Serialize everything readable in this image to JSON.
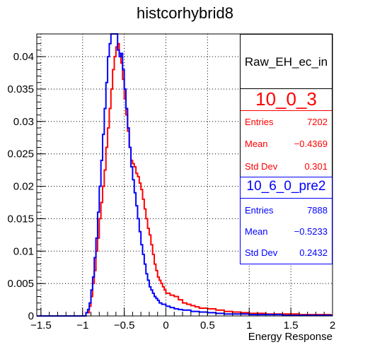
{
  "chart_data": {
    "type": "histogram",
    "title": "histcorhybrid8",
    "xlabel": "Energy Response",
    "ylabel": "",
    "xlim": [
      -1.55,
      2.0
    ],
    "ylim": [
      0,
      0.0435
    ],
    "grid": true,
    "x_ticks": [
      "-1.5",
      "-1",
      "-0.5",
      "0",
      "0.5",
      "1",
      "1.5",
      "2"
    ],
    "y_ticks": [
      "0",
      "0.005",
      "0.01",
      "0.015",
      "0.02",
      "0.025",
      "0.03",
      "0.035",
      "0.04"
    ],
    "stats_title": "Raw_EH_ec_in",
    "series": [
      {
        "name": "10_0_3",
        "color": "#ff0000",
        "entries": "7202",
        "mean": "−0.4369",
        "std_dev": "0.301",
        "points": [
          [
            -1.0,
            0
          ],
          [
            -0.96,
            0.0005
          ],
          [
            -0.92,
            0.0015
          ],
          [
            -0.9,
            0.003
          ],
          [
            -0.88,
            0.005
          ],
          [
            -0.86,
            0.007
          ],
          [
            -0.84,
            0.01
          ],
          [
            -0.82,
            0.012
          ],
          [
            -0.8,
            0.015
          ],
          [
            -0.78,
            0.0175
          ],
          [
            -0.76,
            0.02
          ],
          [
            -0.74,
            0.0225
          ],
          [
            -0.72,
            0.026
          ],
          [
            -0.7,
            0.029
          ],
          [
            -0.68,
            0.032
          ],
          [
            -0.66,
            0.035
          ],
          [
            -0.64,
            0.038
          ],
          [
            -0.62,
            0.04
          ],
          [
            -0.6,
            0.0415
          ],
          [
            -0.58,
            0.042
          ],
          [
            -0.56,
            0.0405
          ],
          [
            -0.54,
            0.039
          ],
          [
            -0.52,
            0.0365
          ],
          [
            -0.5,
            0.0335
          ],
          [
            -0.48,
            0.031
          ],
          [
            -0.46,
            0.0285
          ],
          [
            -0.44,
            0.026
          ],
          [
            -0.42,
            0.024
          ],
          [
            -0.4,
            0.0235
          ],
          [
            -0.38,
            0.023
          ],
          [
            -0.36,
            0.022
          ],
          [
            -0.34,
            0.0215
          ],
          [
            -0.32,
            0.0205
          ],
          [
            -0.3,
            0.0195
          ],
          [
            -0.28,
            0.018
          ],
          [
            -0.26,
            0.0165
          ],
          [
            -0.24,
            0.015
          ],
          [
            -0.22,
            0.0135
          ],
          [
            -0.2,
            0.0125
          ],
          [
            -0.18,
            0.011
          ],
          [
            -0.16,
            0.0095
          ],
          [
            -0.14,
            0.008
          ],
          [
            -0.12,
            0.007
          ],
          [
            -0.1,
            0.006
          ],
          [
            -0.08,
            0.0055
          ],
          [
            -0.06,
            0.005
          ],
          [
            -0.04,
            0.0045
          ],
          [
            -0.02,
            0.004
          ],
          [
            0.0,
            0.0035
          ],
          [
            0.05,
            0.0032
          ],
          [
            0.1,
            0.003
          ],
          [
            0.15,
            0.0025
          ],
          [
            0.2,
            0.002
          ],
          [
            0.25,
            0.0018
          ],
          [
            0.3,
            0.0016
          ],
          [
            0.35,
            0.0014
          ],
          [
            0.4,
            0.0012
          ],
          [
            0.5,
            0.0011
          ],
          [
            0.6,
            0.0009
          ],
          [
            0.7,
            0.0007
          ],
          [
            0.8,
            0.0006
          ],
          [
            0.9,
            0.0005
          ],
          [
            1.0,
            0.0004
          ],
          [
            1.2,
            0.0003
          ],
          [
            1.4,
            0.0003
          ],
          [
            1.6,
            0.0002
          ],
          [
            1.8,
            0.0002
          ],
          [
            1.98,
            0.0001
          ]
        ]
      },
      {
        "name": "10_6_0_pre2",
        "color": "#0000ff",
        "entries": "7888",
        "mean": "−0.5233",
        "std_dev": "0.2432",
        "points": [
          [
            -1.0,
            0
          ],
          [
            -0.96,
            0.0005
          ],
          [
            -0.94,
            0.001
          ],
          [
            -0.92,
            0.002
          ],
          [
            -0.9,
            0.004
          ],
          [
            -0.88,
            0.006
          ],
          [
            -0.86,
            0.009
          ],
          [
            -0.84,
            0.012
          ],
          [
            -0.82,
            0.016
          ],
          [
            -0.8,
            0.02
          ],
          [
            -0.78,
            0.024
          ],
          [
            -0.76,
            0.028
          ],
          [
            -0.74,
            0.032
          ],
          [
            -0.72,
            0.036
          ],
          [
            -0.7,
            0.04
          ],
          [
            -0.68,
            0.042
          ],
          [
            -0.66,
            0.0435
          ],
          [
            -0.64,
            0.0435
          ],
          [
            -0.62,
            0.0435
          ],
          [
            -0.6,
            0.0435
          ],
          [
            -0.58,
            0.041
          ],
          [
            -0.56,
            0.04
          ],
          [
            -0.54,
            0.0405
          ],
          [
            -0.52,
            0.038
          ],
          [
            -0.5,
            0.035
          ],
          [
            -0.48,
            0.032
          ],
          [
            -0.46,
            0.029
          ],
          [
            -0.44,
            0.026
          ],
          [
            -0.42,
            0.023
          ],
          [
            -0.4,
            0.021
          ],
          [
            -0.38,
            0.019
          ],
          [
            -0.36,
            0.017
          ],
          [
            -0.34,
            0.015
          ],
          [
            -0.32,
            0.013
          ],
          [
            -0.3,
            0.011
          ],
          [
            -0.28,
            0.0095
          ],
          [
            -0.26,
            0.008
          ],
          [
            -0.24,
            0.0065
          ],
          [
            -0.22,
            0.0055
          ],
          [
            -0.2,
            0.0045
          ],
          [
            -0.18,
            0.004
          ],
          [
            -0.16,
            0.0035
          ],
          [
            -0.14,
            0.003
          ],
          [
            -0.12,
            0.0027
          ],
          [
            -0.1,
            0.0024
          ],
          [
            -0.08,
            0.002
          ],
          [
            -0.05,
            0.0018
          ],
          [
            0.0,
            0.0015
          ],
          [
            0.05,
            0.0013
          ],
          [
            0.1,
            0.0011
          ],
          [
            0.15,
            0.001
          ],
          [
            0.2,
            0.0009
          ],
          [
            0.3,
            0.0007
          ],
          [
            0.4,
            0.0006
          ],
          [
            0.5,
            0.0005
          ],
          [
            0.6,
            0.0004
          ],
          [
            0.7,
            0.0003
          ],
          [
            0.8,
            0.0003
          ],
          [
            1.0,
            0.0002
          ],
          [
            1.2,
            0.0002
          ],
          [
            1.4,
            0.0001
          ],
          [
            1.6,
            0.0001
          ],
          [
            1.98,
            0.0001
          ]
        ]
      }
    ]
  }
}
